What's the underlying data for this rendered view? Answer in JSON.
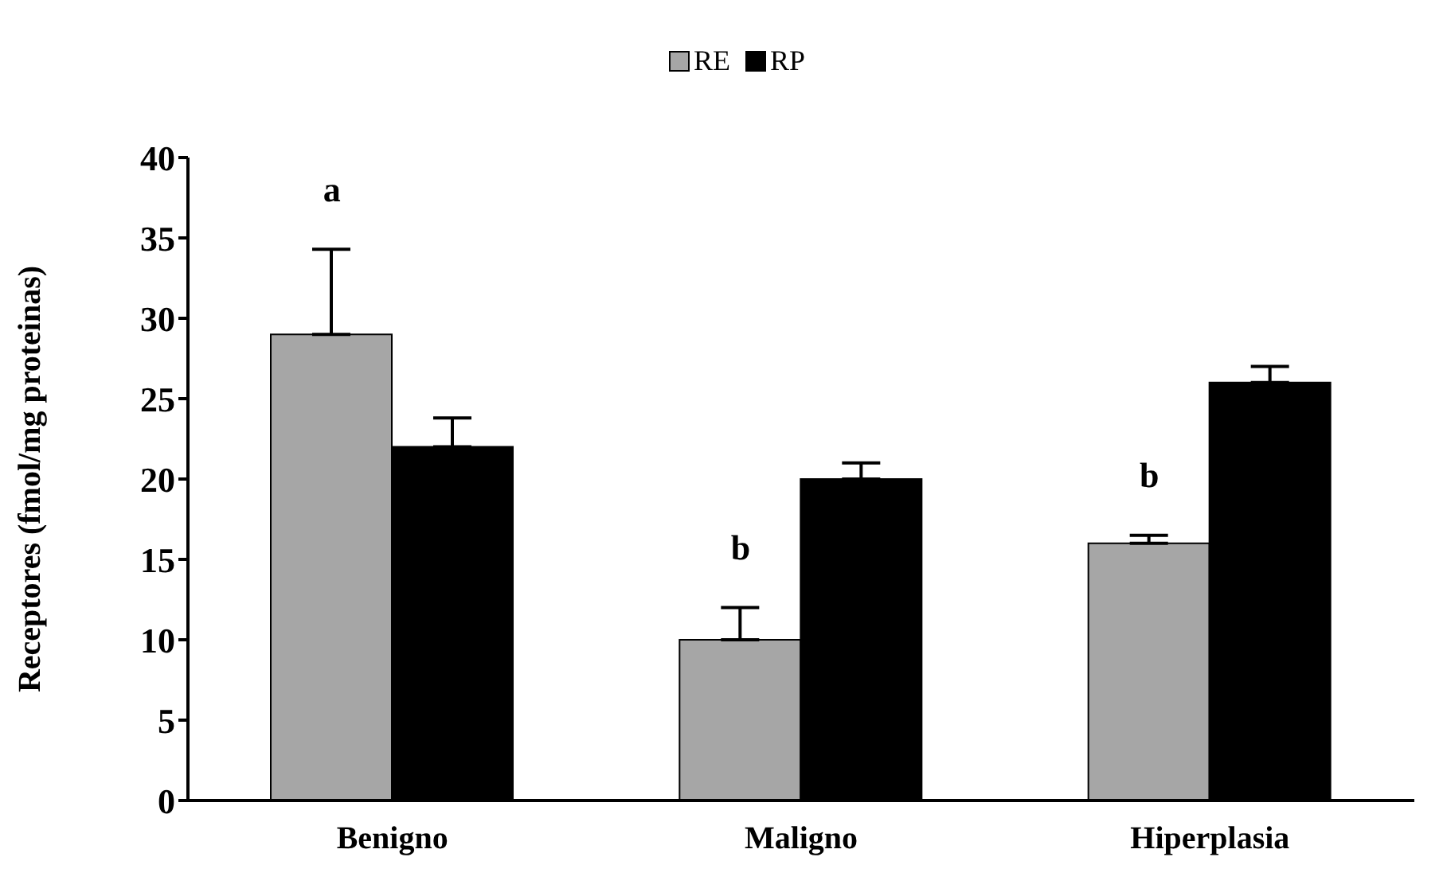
{
  "chart_data": {
    "type": "bar",
    "ylabel": "Receptores (fmol/mg proteinas)",
    "categories": [
      "Benigno",
      "Maligno",
      "Hiperplasia"
    ],
    "series": [
      {
        "name": "RE",
        "color": "#a6a6a6",
        "values": [
          29,
          10,
          16
        ],
        "errors": [
          [
            29,
            34.3
          ],
          [
            10,
            12
          ],
          [
            16,
            16.5
          ]
        ]
      },
      {
        "name": "RP",
        "color": "#000000",
        "values": [
          22,
          20,
          26
        ],
        "errors": [
          [
            22,
            23.8
          ],
          [
            20,
            21
          ],
          [
            26,
            27
          ]
        ]
      }
    ],
    "ylim": [
      0,
      40
    ],
    "yticks": [
      0,
      5,
      10,
      15,
      20,
      25,
      30,
      35,
      40
    ],
    "grid": false,
    "legend": "top",
    "annotations": [
      "a",
      "b",
      "b"
    ]
  }
}
